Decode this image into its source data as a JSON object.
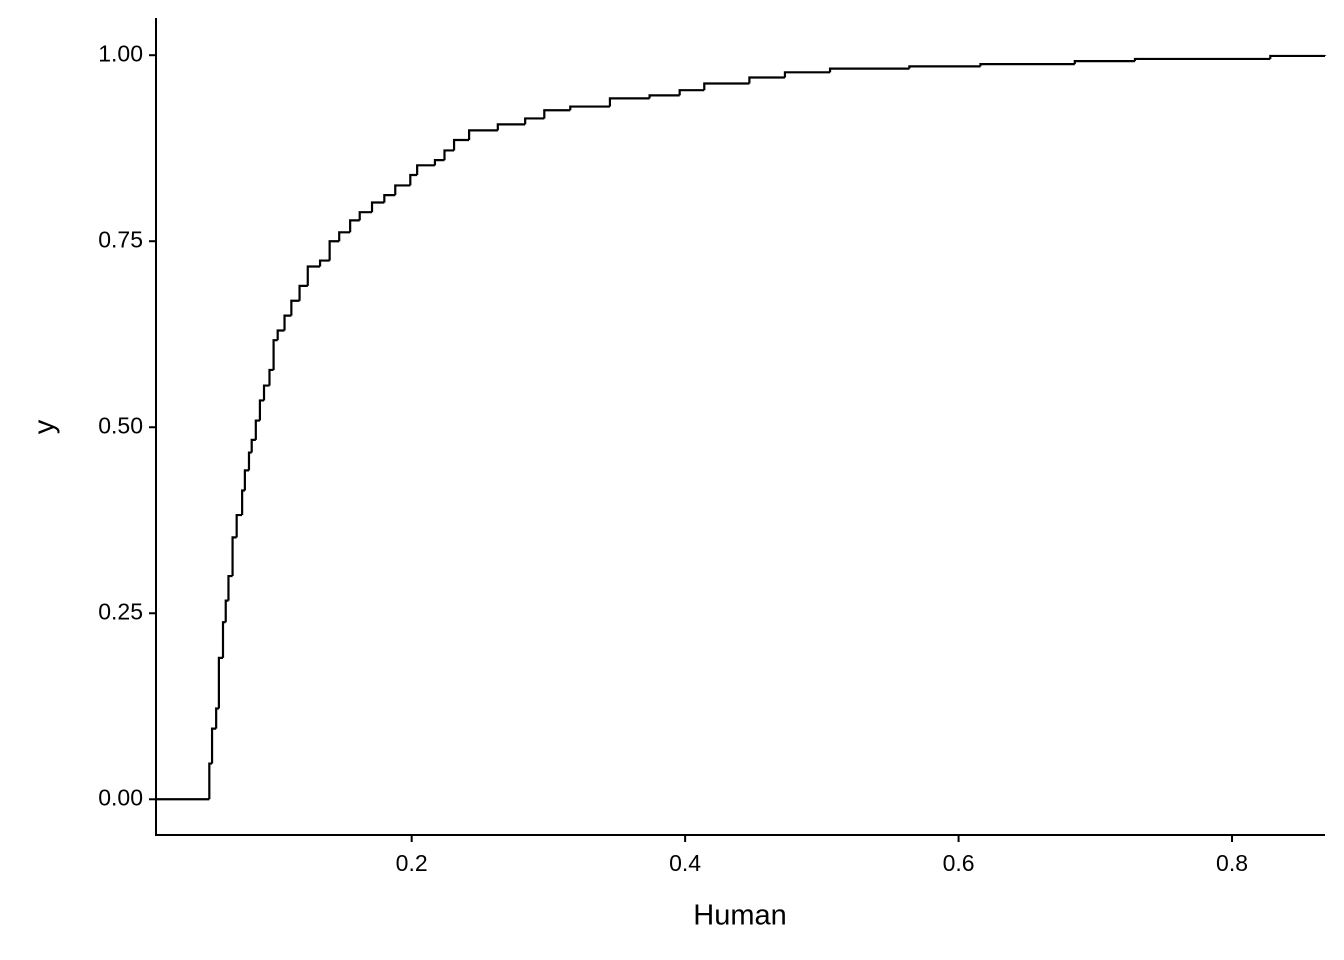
{
  "chart_data": {
    "type": "step",
    "x_label": "Human",
    "y_label": "y",
    "color": "#000000",
    "xlim": [
      0.013,
      0.868
    ],
    "ylim": [
      -0.048,
      1.05
    ],
    "xticks": [
      0.2,
      0.4,
      0.6,
      0.8
    ],
    "yticks": [
      {
        "value": 0,
        "label": "0.00"
      },
      {
        "value": 0.25,
        "label": "0.25"
      },
      {
        "value": 0.5,
        "label": "0.50"
      },
      {
        "value": 0.75,
        "label": "0.75"
      },
      {
        "value": 1,
        "label": "1.00"
      }
    ],
    "grid": false,
    "x": [
      0.013,
      0.052,
      0.054,
      0.057,
      0.059,
      0.062,
      0.064,
      0.066,
      0.069,
      0.072,
      0.076,
      0.078,
      0.081,
      0.083,
      0.086,
      0.089,
      0.092,
      0.096,
      0.099,
      0.102,
      0.107,
      0.112,
      0.118,
      0.124,
      0.133,
      0.14,
      0.147,
      0.155,
      0.162,
      0.171,
      0.18,
      0.188,
      0.199,
      0.204,
      0.217,
      0.224,
      0.231,
      0.242,
      0.263,
      0.283,
      0.297,
      0.316,
      0.345,
      0.374,
      0.396,
      0.414,
      0.447,
      0.473,
      0.506,
      0.564,
      0.616,
      0.685,
      0.729,
      0.828,
      0.868
    ],
    "values": [
      0,
      0.048,
      0.095,
      0.122,
      0.19,
      0.238,
      0.267,
      0.3,
      0.352,
      0.382,
      0.415,
      0.442,
      0.466,
      0.483,
      0.509,
      0.536,
      0.556,
      0.577,
      0.617,
      0.63,
      0.65,
      0.67,
      0.69,
      0.716,
      0.724,
      0.75,
      0.762,
      0.778,
      0.789,
      0.802,
      0.812,
      0.825,
      0.839,
      0.852,
      0.859,
      0.872,
      0.886,
      0.899,
      0.907,
      0.915,
      0.926,
      0.931,
      0.942,
      0.946,
      0.953,
      0.962,
      0.97,
      0.977,
      0.982,
      0.985,
      0.988,
      0.992,
      0.995,
      0.999,
      1.0
    ]
  }
}
